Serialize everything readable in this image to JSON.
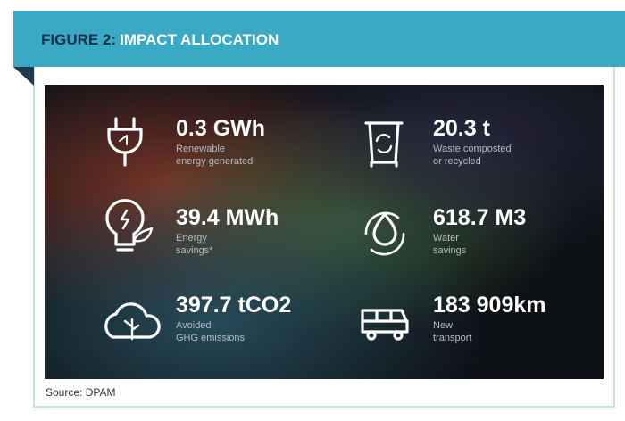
{
  "header": {
    "label": "FIGURE 2:",
    "title": "IMPACT ALLOCATION"
  },
  "items": [
    {
      "value": "0.3 GWh",
      "lines": [
        "Renewable",
        "energy generated"
      ]
    },
    {
      "value": "20.3 t",
      "lines": [
        "Waste composted",
        "or recycled"
      ]
    },
    {
      "value": "39.4 MWh",
      "lines": [
        "Energy",
        "savings*"
      ]
    },
    {
      "value": "618.7 M3",
      "lines": [
        "Water",
        "savings"
      ]
    },
    {
      "value": "397.7 tCO2",
      "lines": [
        "Avoided",
        "GHG emissions"
      ]
    },
    {
      "value": "183 909km",
      "lines": [
        "New",
        "transport"
      ]
    }
  ],
  "source": "Source: DPAM"
}
